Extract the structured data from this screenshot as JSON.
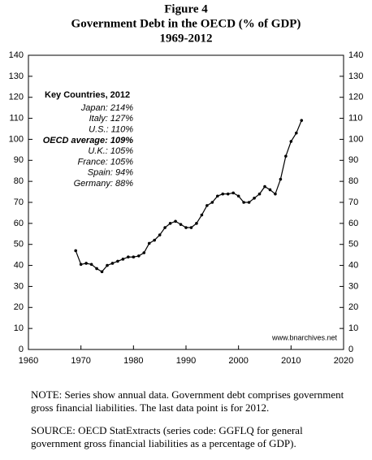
{
  "chart_data": {
    "type": "line",
    "figure_label": "Figure 4",
    "title": "Government Debt in the OECD (% of GDP)",
    "subtitle": "1969-2012",
    "x": [
      1969,
      1970,
      1971,
      1972,
      1973,
      1974,
      1975,
      1976,
      1977,
      1978,
      1979,
      1980,
      1981,
      1982,
      1983,
      1984,
      1985,
      1986,
      1987,
      1988,
      1989,
      1990,
      1991,
      1992,
      1993,
      1994,
      1995,
      1996,
      1997,
      1998,
      1999,
      2000,
      2001,
      2002,
      2003,
      2004,
      2005,
      2006,
      2007,
      2008,
      2009,
      2010,
      2011,
      2012
    ],
    "values": [
      47,
      40.5,
      41,
      40.5,
      38.5,
      37,
      40,
      41,
      42,
      43,
      44,
      44,
      44.5,
      46,
      50.5,
      52,
      54.5,
      58,
      60,
      61,
      59.5,
      58,
      58,
      60,
      64,
      68.5,
      70,
      73,
      74,
      74,
      74.5,
      73,
      70,
      70,
      72,
      74,
      77.5,
      76,
      74,
      81,
      92,
      99,
      103,
      109
    ],
    "color": "#000000",
    "xlim": [
      1960,
      2020
    ],
    "xticks": [
      1960,
      1970,
      1980,
      1990,
      2000,
      2010,
      2020
    ],
    "ylim": [
      0,
      140
    ],
    "yticks": [
      0,
      10,
      20,
      30,
      40,
      50,
      60,
      70,
      80,
      90,
      100,
      110,
      120,
      130,
      140
    ],
    "y2lim": [
      0,
      140
    ],
    "y2ticks": [
      0,
      10,
      20,
      30,
      40,
      50,
      60,
      70,
      80,
      90,
      100,
      110,
      120,
      130,
      140
    ],
    "grid": false,
    "key_title": "Key Countries, 2012",
    "key_entries": [
      "Japan: 214%",
      "Italy: 127%",
      "U.S.: 110%",
      "OECD average: 109%",
      "U.K.: 105%",
      "France: 105%",
      "Spain: 94%",
      "Germany: 88%"
    ],
    "watermark": "www.bnarchives.net",
    "note": "NOTE: Series show annual data. Government debt comprises government gross financial liabilities. The last data point is for 2012.",
    "source": "SOURCE: OECD StatExtracts (series code: GGFLQ for general government gross financial liabilities as a percentage of GDP)."
  }
}
